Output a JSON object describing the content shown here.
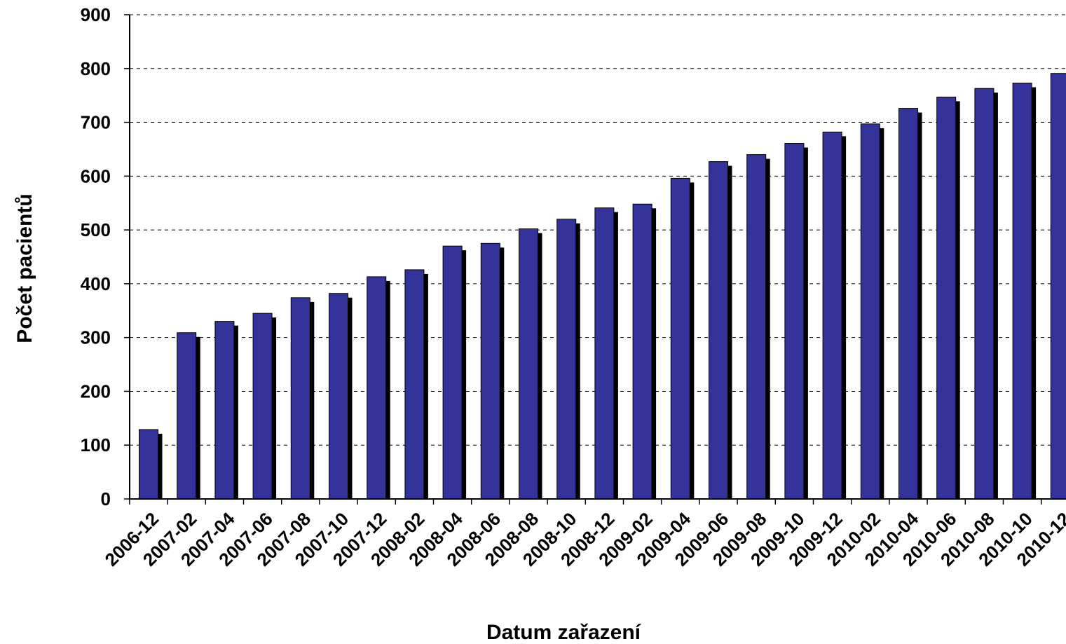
{
  "chart_data": {
    "type": "bar",
    "title": "",
    "xlabel": "Datum zařazení",
    "ylabel": "Počet pacientů",
    "ylim": [
      0,
      900
    ],
    "yticks": [
      0,
      100,
      200,
      300,
      400,
      500,
      600,
      700,
      800,
      900
    ],
    "grid": true,
    "categories": [
      "2006-12",
      "2007-02",
      "2007-04",
      "2007-06",
      "2007-08",
      "2007-10",
      "2007-12",
      "2008-02",
      "2008-04",
      "2008-06",
      "2008-08",
      "2008-10",
      "2008-12",
      "2009-02",
      "2009-04",
      "2009-06",
      "2009-08",
      "2009-10",
      "2009-12",
      "2010-02",
      "2010-04",
      "2010-06",
      "2010-08",
      "2010-10",
      "2010-12"
    ],
    "values": [
      129,
      309,
      330,
      345,
      374,
      382,
      413,
      426,
      470,
      475,
      502,
      520,
      541,
      548,
      596,
      627,
      640,
      661,
      682,
      697,
      726,
      747,
      763,
      773,
      791
    ],
    "colors": {
      "bar": "#333399",
      "shadow": "#000000",
      "grid": "#000000",
      "axis": "#000000"
    }
  }
}
